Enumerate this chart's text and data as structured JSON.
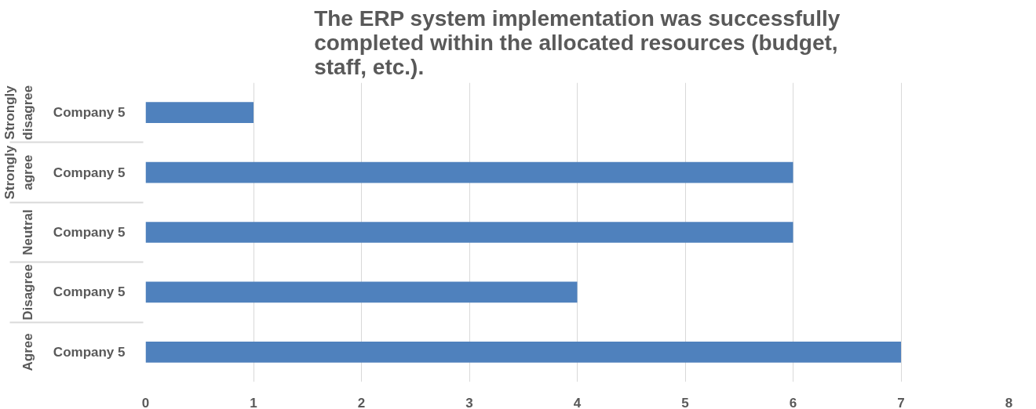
{
  "chart_data": {
    "type": "bar",
    "orientation": "horizontal",
    "title": "The ERP system implementation was successfully completed within the allocated resources (budget, staff, etc.).",
    "categories": [
      "Strongly disagree",
      "Strongly agree",
      "Neutral",
      "Disagree",
      "Agree"
    ],
    "annotations": [
      "Company 5",
      "Company 5",
      "Company 5",
      "Company 5",
      "Company 5"
    ],
    "values": [
      1,
      6,
      6,
      4,
      7
    ],
    "color": "#4f81bd",
    "xlim": [
      0,
      8
    ],
    "xticks": [
      0,
      1,
      2,
      3,
      4,
      5,
      6,
      7,
      8
    ],
    "grid": "x"
  }
}
